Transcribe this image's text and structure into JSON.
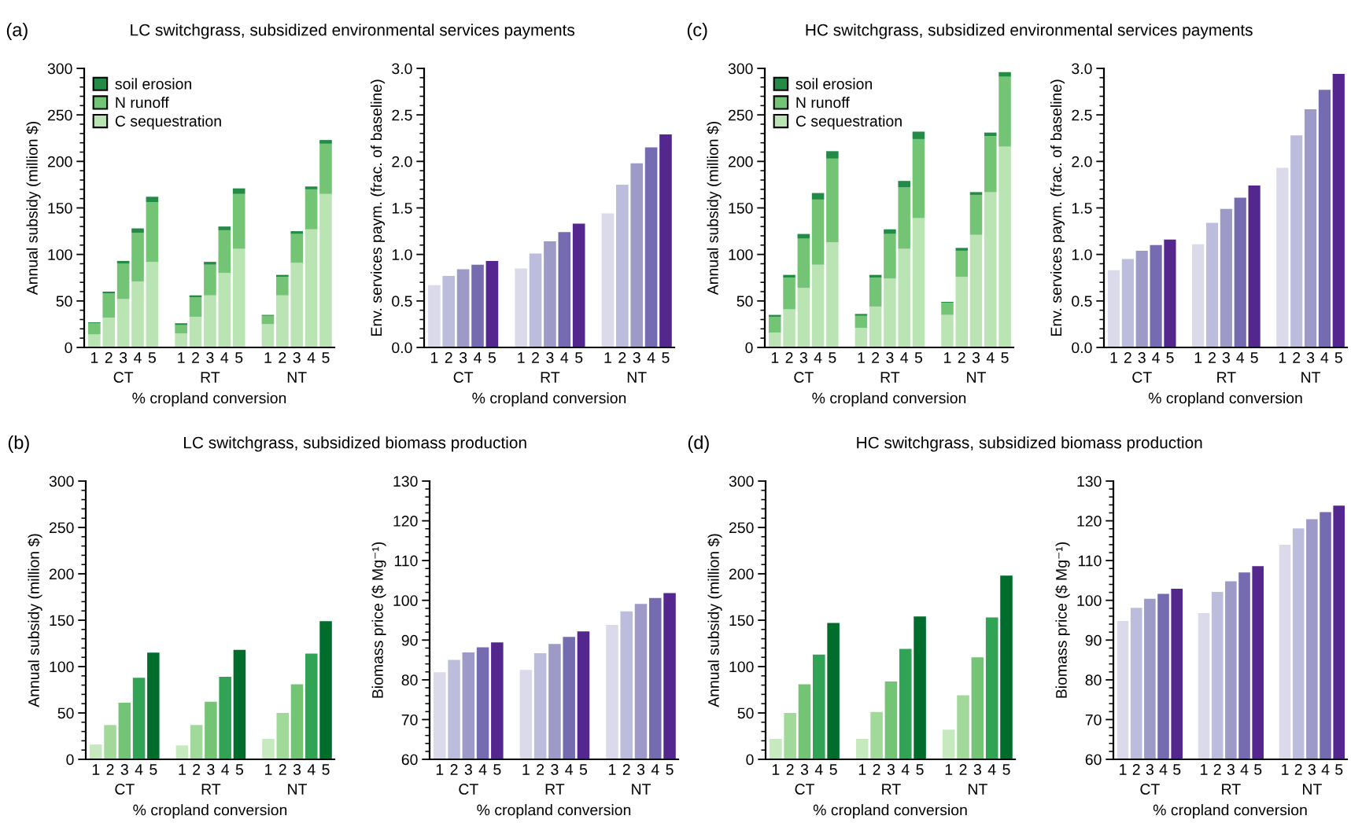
{
  "chart_data": [
    {
      "type": "bar",
      "stacked": true,
      "title": "LC switchgrass, subsidized environmental services payments",
      "xlabel": "% cropland conversion",
      "ylabel": "Annual subsidy (million $)",
      "categories": [
        "1",
        "2",
        "3",
        "4",
        "5",
        null,
        "1",
        "2",
        "3",
        "4",
        "5",
        null,
        "1",
        "2",
        "3",
        "4",
        "5"
      ],
      "series": [
        {
          "name": "C sequestration",
          "color": "#bae4b3",
          "values": [
            14,
            32,
            52,
            71,
            92,
            null,
            15,
            33,
            56,
            80,
            106,
            null,
            25,
            56,
            91,
            127,
            165
          ]
        },
        {
          "name": "N runoff",
          "color": "#74c476",
          "values": [
            12,
            26,
            38,
            52,
            64,
            null,
            9,
            21,
            33,
            46,
            59,
            null,
            9,
            20,
            31,
            43,
            54
          ]
        },
        {
          "name": "soil erosion",
          "color": "#238b45",
          "values": [
            1,
            2,
            3,
            5,
            6,
            null,
            2,
            2,
            3,
            4,
            6,
            null,
            1,
            2,
            3,
            3,
            4
          ]
        }
      ],
      "ylim": [
        0,
        300
      ],
      "yticks": [
        0,
        50,
        100,
        150,
        200,
        250,
        300
      ],
      "legend": "top left",
      "grid": false,
      "annotations": [
        "CT",
        "RT",
        "NT",
        "(a)"
      ]
    },
    {
      "type": "bar",
      "xlabel": "% cropland conversion",
      "ylabel": "Env. services paym. (frac. of baseline)",
      "categories": [
        "1",
        "2",
        "3",
        "4",
        "5",
        null,
        "1",
        "2",
        "3",
        "4",
        "5",
        null,
        "1",
        "2",
        "3",
        "4",
        "5"
      ],
      "values": [
        0.67,
        0.77,
        0.84,
        0.89,
        0.93,
        null,
        0.85,
        1.01,
        1.14,
        1.24,
        1.33,
        null,
        1.44,
        1.75,
        1.98,
        2.15,
        2.29
      ],
      "colors": [
        "#dadaeb",
        "#bcbddc",
        "#9e9ac8",
        "#756bb1",
        "#54278f",
        null,
        "#dadaeb",
        "#bcbddc",
        "#9e9ac8",
        "#756bb1",
        "#54278f",
        null,
        "#dadaeb",
        "#bcbddc",
        "#9e9ac8",
        "#756bb1",
        "#54278f"
      ],
      "ylim": [
        0,
        3
      ],
      "yticks": [
        {
          "value": 0,
          "label": "0.0"
        },
        {
          "value": 0.5,
          "label": "0.5"
        },
        {
          "value": 1,
          "label": "1.0"
        },
        {
          "value": 1.5,
          "label": "1.5"
        },
        {
          "value": 2,
          "label": "2.0"
        },
        {
          "value": 2.5,
          "label": "2.5"
        },
        {
          "value": 3,
          "label": "3.0"
        }
      ],
      "grid": false,
      "annotations": [
        "CT",
        "RT",
        "NT"
      ]
    },
    {
      "type": "bar",
      "stacked": true,
      "title": "HC switchgrass, subsidized environmental services payments",
      "xlabel": "% cropland conversion",
      "ylabel": "Annual subsidy (million $)",
      "categories": [
        "1",
        "2",
        "3",
        "4",
        "5",
        null,
        "1",
        "2",
        "3",
        "4",
        "5",
        null,
        "1",
        "2",
        "3",
        "4",
        "5"
      ],
      "series": [
        {
          "name": "C sequestration",
          "color": "#bae4b3",
          "values": [
            16,
            41,
            64,
            89,
            113,
            null,
            21,
            44,
            74,
            106,
            139,
            null,
            35,
            76,
            121,
            167,
            216
          ]
        },
        {
          "name": "N runoff",
          "color": "#74c476",
          "values": [
            17,
            34,
            53,
            70,
            90,
            null,
            13,
            31,
            48,
            66,
            85,
            null,
            13,
            28,
            43,
            60,
            75
          ]
        },
        {
          "name": "soil erosion",
          "color": "#238b45",
          "values": [
            2,
            3,
            5,
            7,
            8,
            null,
            2,
            3,
            5,
            7,
            8,
            null,
            1,
            3,
            3,
            4,
            5
          ]
        }
      ],
      "ylim": [
        0,
        300
      ],
      "yticks": [
        0,
        50,
        100,
        150,
        200,
        250,
        300
      ],
      "legend": "top left",
      "grid": false,
      "annotations": [
        "CT",
        "RT",
        "NT",
        "(c)"
      ]
    },
    {
      "type": "bar",
      "xlabel": "% cropland conversion",
      "ylabel": "Env. services paym. (frac. of baseline)",
      "categories": [
        "1",
        "2",
        "3",
        "4",
        "5",
        null,
        "1",
        "2",
        "3",
        "4",
        "5",
        null,
        "1",
        "2",
        "3",
        "4",
        "5"
      ],
      "values": [
        0.83,
        0.95,
        1.04,
        1.1,
        1.16,
        null,
        1.11,
        1.34,
        1.49,
        1.61,
        1.74,
        null,
        1.93,
        2.28,
        2.56,
        2.77,
        2.94
      ],
      "colors": [
        "#dadaeb",
        "#bcbddc",
        "#9e9ac8",
        "#756bb1",
        "#54278f",
        null,
        "#dadaeb",
        "#bcbddc",
        "#9e9ac8",
        "#756bb1",
        "#54278f",
        null,
        "#dadaeb",
        "#bcbddc",
        "#9e9ac8",
        "#756bb1",
        "#54278f"
      ],
      "ylim": [
        0,
        3
      ],
      "yticks": [
        {
          "value": 0,
          "label": "0.0"
        },
        {
          "value": 0.5,
          "label": "0.5"
        },
        {
          "value": 1,
          "label": "1.0"
        },
        {
          "value": 1.5,
          "label": "1.5"
        },
        {
          "value": 2,
          "label": "2.0"
        },
        {
          "value": 2.5,
          "label": "2.5"
        },
        {
          "value": 3,
          "label": "3.0"
        }
      ],
      "grid": false,
      "annotations": [
        "CT",
        "RT",
        "NT"
      ]
    },
    {
      "type": "bar",
      "title": "LC switchgrass, subsidized biomass production",
      "xlabel": "% cropland conversion",
      "ylabel": "Annual subsidy (million $)",
      "categories": [
        "1",
        "2",
        "3",
        "4",
        "5",
        null,
        "1",
        "2",
        "3",
        "4",
        "5",
        null,
        "1",
        "2",
        "3",
        "4",
        "5"
      ],
      "values": [
        16,
        37,
        61,
        88,
        115,
        null,
        15,
        37,
        62,
        89,
        118,
        null,
        22,
        50,
        81,
        114,
        149
      ],
      "colors": [
        "#c7e9c0",
        "#a1d99b",
        "#74c476",
        "#31a354",
        "#006d2c",
        null,
        "#c7e9c0",
        "#a1d99b",
        "#74c476",
        "#31a354",
        "#006d2c",
        null,
        "#c7e9c0",
        "#a1d99b",
        "#74c476",
        "#31a354",
        "#006d2c"
      ],
      "ylim": [
        0,
        300
      ],
      "yticks": [
        0,
        50,
        100,
        150,
        200,
        250,
        300
      ],
      "grid": false,
      "annotations": [
        "CT",
        "RT",
        "NT",
        "(b)"
      ]
    },
    {
      "type": "bar",
      "xlabel": "% cropland conversion",
      "ylabel": "Biomass price ($ Mg⁻¹)",
      "categories": [
        "1",
        "2",
        "3",
        "4",
        "5",
        null,
        "1",
        "2",
        "3",
        "4",
        "5",
        null,
        "1",
        "2",
        "3",
        "4",
        "5"
      ],
      "values": [
        81.9,
        85.0,
        86.9,
        88.2,
        89.4,
        null,
        82.5,
        86.7,
        89.0,
        90.8,
        92.2,
        null,
        93.8,
        97.2,
        99.1,
        100.6,
        101.8
      ],
      "colors": [
        "#dadaeb",
        "#bcbddc",
        "#9e9ac8",
        "#756bb1",
        "#54278f",
        null,
        "#dadaeb",
        "#bcbddc",
        "#9e9ac8",
        "#756bb1",
        "#54278f",
        null,
        "#dadaeb",
        "#bcbddc",
        "#9e9ac8",
        "#756bb1",
        "#54278f"
      ],
      "ylim": [
        60,
        130
      ],
      "yticks": [
        60,
        70,
        80,
        90,
        100,
        110,
        120,
        130
      ],
      "grid": false,
      "annotations": [
        "CT",
        "RT",
        "NT"
      ]
    },
    {
      "type": "bar",
      "title": "HC switchgrass, subsidized biomass production",
      "xlabel": "% cropland conversion",
      "ylabel": "Annual subsidy (million $)",
      "categories": [
        "1",
        "2",
        "3",
        "4",
        "5",
        null,
        "1",
        "2",
        "3",
        "4",
        "5",
        null,
        "1",
        "2",
        "3",
        "4",
        "5"
      ],
      "values": [
        22,
        50,
        81,
        113,
        147,
        null,
        22,
        51,
        84,
        119,
        154,
        null,
        32,
        69,
        110,
        153,
        198
      ],
      "colors": [
        "#c7e9c0",
        "#a1d99b",
        "#74c476",
        "#31a354",
        "#006d2c",
        null,
        "#c7e9c0",
        "#a1d99b",
        "#74c476",
        "#31a354",
        "#006d2c",
        null,
        "#c7e9c0",
        "#a1d99b",
        "#74c476",
        "#31a354",
        "#006d2c"
      ],
      "ylim": [
        0,
        300
      ],
      "yticks": [
        0,
        50,
        100,
        150,
        200,
        250,
        300
      ],
      "grid": false,
      "annotations": [
        "CT",
        "RT",
        "NT",
        "(d)"
      ]
    },
    {
      "type": "bar",
      "xlabel": "% cropland conversion",
      "ylabel": "Biomass price ($ Mg⁻¹)",
      "categories": [
        "1",
        "2",
        "3",
        "4",
        "5",
        null,
        "1",
        "2",
        "3",
        "4",
        "5",
        null,
        "1",
        "2",
        "3",
        "4",
        "5"
      ],
      "values": [
        94.8,
        98.1,
        100.4,
        101.6,
        102.9,
        null,
        96.8,
        102.1,
        104.8,
        107.0,
        108.6,
        null,
        114.0,
        118.1,
        120.4,
        122.2,
        123.8
      ],
      "colors": [
        "#dadaeb",
        "#bcbddc",
        "#9e9ac8",
        "#756bb1",
        "#54278f",
        null,
        "#dadaeb",
        "#bcbddc",
        "#9e9ac8",
        "#756bb1",
        "#54278f",
        null,
        "#dadaeb",
        "#bcbddc",
        "#9e9ac8",
        "#756bb1",
        "#54278f"
      ],
      "ylim": [
        60,
        130
      ],
      "yticks": [
        60,
        70,
        80,
        90,
        100,
        110,
        120,
        130
      ],
      "grid": false,
      "annotations": [
        "CT",
        "RT",
        "NT"
      ]
    }
  ]
}
